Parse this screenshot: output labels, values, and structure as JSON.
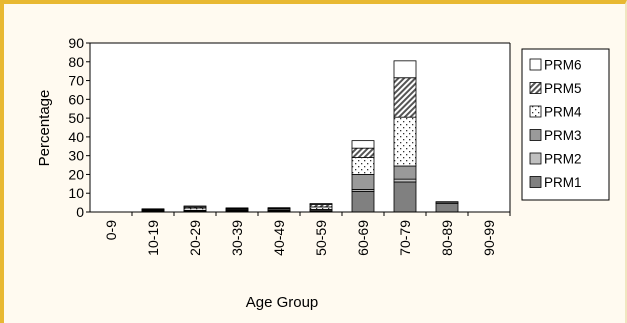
{
  "chart_data": {
    "type": "bar",
    "stacked": true,
    "xlabel": "Age Group",
    "ylabel": "Percentage",
    "ylim": [
      0,
      90
    ],
    "yticks": [
      0,
      10,
      20,
      30,
      40,
      50,
      60,
      70,
      80,
      90
    ],
    "grid": false,
    "legend_position": "right",
    "categories": [
      "0-9",
      "10-19",
      "20-29",
      "30-39",
      "40-49",
      "50-59",
      "60-69",
      "70-79",
      "80-89",
      "90-99"
    ],
    "series": [
      {
        "name": "PRM1",
        "color": "#808080",
        "pattern": "solid-dark",
        "values": [
          0,
          0.2,
          0.3,
          0.3,
          0.3,
          0.5,
          11,
          16,
          4.5,
          0
        ]
      },
      {
        "name": "PRM2",
        "color": "#c0c0c0",
        "pattern": "solid-light",
        "values": [
          0,
          0.2,
          0.2,
          0.2,
          0.2,
          0.2,
          1,
          1.5,
          0,
          0
        ]
      },
      {
        "name": "PRM3",
        "color": "#9a9a9a",
        "pattern": "solid-mid",
        "values": [
          0,
          0.3,
          0.4,
          0.4,
          0.4,
          0.7,
          8,
          7,
          0.8,
          0
        ]
      },
      {
        "name": "PRM4",
        "color": "#ffffff",
        "pattern": "dots",
        "values": [
          0,
          0.4,
          1.2,
          0.5,
          0.6,
          1.3,
          9,
          26,
          0.2,
          0
        ]
      },
      {
        "name": "PRM5",
        "color": "#ffffff",
        "pattern": "diagonal",
        "values": [
          0,
          0.3,
          0.6,
          0.4,
          0.4,
          1.3,
          5,
          21,
          0,
          0
        ]
      },
      {
        "name": "PRM6",
        "color": "#ffffff",
        "pattern": "white",
        "values": [
          0,
          0.3,
          0.5,
          0.4,
          0.4,
          0.5,
          4,
          9,
          0,
          0
        ]
      }
    ]
  }
}
